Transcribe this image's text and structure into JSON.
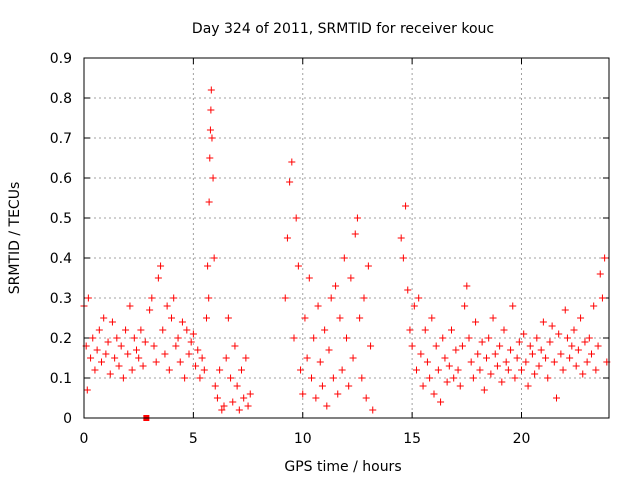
{
  "chart_data": {
    "type": "scatter",
    "title": "Day 324 of 2011, SRMTID for receiver kouc",
    "xlabel": "GPS time / hours",
    "ylabel": "SRMTID / TECUs",
    "xlim": [
      0,
      24
    ],
    "ylim": [
      0,
      0.9
    ],
    "x_ticks": [
      0,
      5,
      10,
      15,
      20
    ],
    "x_tick_labels": [
      "0",
      "5",
      "10",
      "15",
      "20"
    ],
    "y_ticks": [
      0,
      0.1,
      0.2,
      0.3,
      0.4,
      0.5,
      0.6,
      0.7,
      0.8,
      0.9
    ],
    "y_tick_labels": [
      "0",
      "0.1",
      "0.2",
      "0.3",
      "0.4",
      "0.5",
      "0.6",
      "0.7",
      "0.8",
      "0.9"
    ],
    "grid": true,
    "marker": "plus",
    "color": "#ff0000",
    "series": [
      {
        "name": "SRMTID",
        "x": [
          0.0,
          0.1,
          0.15,
          0.2,
          0.3,
          0.4,
          0.5,
          0.6,
          0.7,
          0.8,
          0.9,
          1.0,
          1.1,
          1.2,
          1.3,
          1.4,
          1.5,
          1.6,
          1.7,
          1.8,
          1.9,
          2.0,
          2.1,
          2.2,
          2.3,
          2.4,
          2.5,
          2.6,
          2.7,
          2.8,
          3.0,
          3.1,
          3.2,
          3.3,
          3.4,
          3.5,
          3.6,
          3.7,
          3.8,
          3.9,
          4.0,
          4.1,
          4.2,
          4.3,
          4.4,
          4.5,
          4.6,
          4.7,
          4.8,
          4.9,
          5.0,
          5.1,
          5.2,
          5.3,
          5.4,
          5.5,
          5.6,
          5.65,
          5.7,
          5.72,
          5.75,
          5.78,
          5.8,
          5.82,
          5.85,
          5.9,
          5.95,
          6.0,
          6.1,
          6.2,
          6.3,
          6.4,
          6.5,
          6.6,
          6.7,
          6.8,
          6.9,
          7.0,
          7.1,
          7.2,
          7.3,
          7.4,
          7.5,
          7.6,
          9.2,
          9.3,
          9.4,
          9.5,
          9.6,
          9.7,
          9.8,
          9.9,
          10.0,
          10.1,
          10.2,
          10.3,
          10.4,
          10.5,
          10.6,
          10.7,
          10.8,
          10.9,
          11.0,
          11.1,
          11.2,
          11.3,
          11.4,
          11.5,
          11.6,
          11.7,
          11.8,
          11.9,
          12.0,
          12.1,
          12.2,
          12.3,
          12.4,
          12.5,
          12.6,
          12.7,
          12.8,
          12.9,
          13.0,
          13.1,
          13.2,
          14.5,
          14.6,
          14.7,
          14.8,
          14.9,
          15.0,
          15.1,
          15.2,
          15.3,
          15.4,
          15.5,
          15.6,
          15.7,
          15.8,
          15.9,
          16.0,
          16.1,
          16.2,
          16.3,
          16.4,
          16.5,
          16.6,
          16.7,
          16.8,
          16.9,
          17.0,
          17.1,
          17.2,
          17.3,
          17.4,
          17.5,
          17.6,
          17.7,
          17.8,
          17.9,
          18.0,
          18.1,
          18.2,
          18.3,
          18.4,
          18.5,
          18.6,
          18.7,
          18.8,
          18.9,
          19.0,
          19.1,
          19.2,
          19.3,
          19.4,
          19.5,
          19.6,
          19.7,
          19.8,
          19.9,
          20.0,
          20.1,
          20.2,
          20.3,
          20.4,
          20.5,
          20.6,
          20.7,
          20.8,
          20.9,
          21.0,
          21.1,
          21.2,
          21.3,
          21.4,
          21.5,
          21.6,
          21.7,
          21.8,
          21.9,
          22.0,
          22.1,
          22.2,
          22.3,
          22.4,
          22.5,
          22.6,
          22.7,
          22.8,
          22.9,
          23.0,
          23.1,
          23.2,
          23.3,
          23.4,
          23.5,
          23.6,
          23.7,
          23.8,
          23.9
        ],
        "y": [
          0.28,
          0.18,
          0.07,
          0.3,
          0.15,
          0.2,
          0.12,
          0.17,
          0.22,
          0.14,
          0.25,
          0.16,
          0.19,
          0.11,
          0.24,
          0.15,
          0.2,
          0.13,
          0.18,
          0.1,
          0.22,
          0.16,
          0.28,
          0.12,
          0.2,
          0.17,
          0.15,
          0.22,
          0.13,
          0.19,
          0.27,
          0.3,
          0.18,
          0.14,
          0.35,
          0.38,
          0.22,
          0.16,
          0.28,
          0.12,
          0.25,
          0.3,
          0.18,
          0.2,
          0.14,
          0.24,
          0.1,
          0.22,
          0.16,
          0.19,
          0.21,
          0.13,
          0.17,
          0.1,
          0.15,
          0.12,
          0.25,
          0.38,
          0.3,
          0.54,
          0.65,
          0.72,
          0.77,
          0.82,
          0.7,
          0.6,
          0.4,
          0.08,
          0.05,
          0.12,
          0.02,
          0.03,
          0.15,
          0.25,
          0.1,
          0.04,
          0.18,
          0.08,
          0.02,
          0.12,
          0.05,
          0.15,
          0.03,
          0.06,
          0.3,
          0.45,
          0.59,
          0.64,
          0.2,
          0.5,
          0.38,
          0.12,
          0.06,
          0.25,
          0.15,
          0.35,
          0.1,
          0.2,
          0.05,
          0.28,
          0.14,
          0.08,
          0.22,
          0.03,
          0.17,
          0.3,
          0.1,
          0.33,
          0.06,
          0.25,
          0.12,
          0.4,
          0.2,
          0.08,
          0.35,
          0.15,
          0.46,
          0.5,
          0.25,
          0.1,
          0.3,
          0.05,
          0.38,
          0.18,
          0.02,
          0.45,
          0.4,
          0.53,
          0.32,
          0.22,
          0.18,
          0.28,
          0.12,
          0.3,
          0.16,
          0.08,
          0.22,
          0.14,
          0.1,
          0.25,
          0.06,
          0.18,
          0.12,
          0.04,
          0.2,
          0.15,
          0.09,
          0.13,
          0.22,
          0.1,
          0.17,
          0.12,
          0.08,
          0.18,
          0.28,
          0.33,
          0.2,
          0.14,
          0.1,
          0.24,
          0.16,
          0.12,
          0.19,
          0.07,
          0.15,
          0.2,
          0.11,
          0.25,
          0.16,
          0.13,
          0.18,
          0.09,
          0.22,
          0.14,
          0.12,
          0.17,
          0.28,
          0.1,
          0.15,
          0.19,
          0.12,
          0.21,
          0.14,
          0.08,
          0.18,
          0.16,
          0.11,
          0.2,
          0.13,
          0.17,
          0.24,
          0.15,
          0.1,
          0.19,
          0.23,
          0.14,
          0.05,
          0.21,
          0.16,
          0.12,
          0.27,
          0.2,
          0.15,
          0.18,
          0.22,
          0.13,
          0.17,
          0.25,
          0.11,
          0.19,
          0.14,
          0.2,
          0.16,
          0.28,
          0.12,
          0.18,
          0.36,
          0.3,
          0.4,
          0.14
        ]
      }
    ],
    "extra_marks": [
      {
        "x": 2.85,
        "y": 0.0,
        "marker": "square"
      }
    ]
  }
}
